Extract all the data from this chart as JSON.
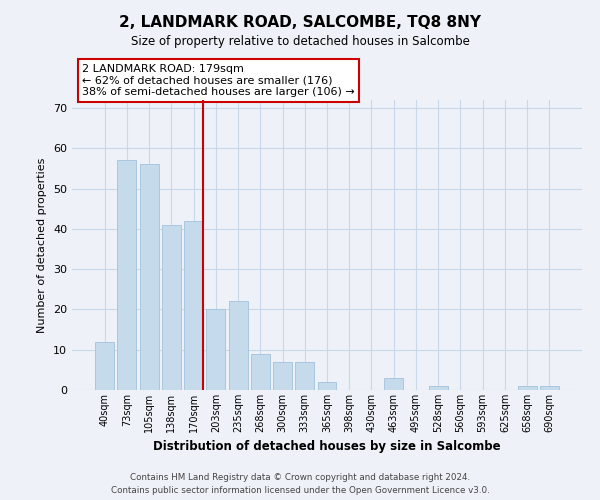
{
  "title": "2, LANDMARK ROAD, SALCOMBE, TQ8 8NY",
  "subtitle": "Size of property relative to detached houses in Salcombe",
  "xlabel": "Distribution of detached houses by size in Salcombe",
  "ylabel": "Number of detached properties",
  "bar_labels": [
    "40sqm",
    "73sqm",
    "105sqm",
    "138sqm",
    "170sqm",
    "203sqm",
    "235sqm",
    "268sqm",
    "300sqm",
    "333sqm",
    "365sqm",
    "398sqm",
    "430sqm",
    "463sqm",
    "495sqm",
    "528sqm",
    "560sqm",
    "593sqm",
    "625sqm",
    "658sqm",
    "690sqm"
  ],
  "bar_values": [
    12,
    57,
    56,
    41,
    42,
    20,
    22,
    9,
    7,
    7,
    2,
    0,
    0,
    3,
    0,
    1,
    0,
    0,
    0,
    1,
    1
  ],
  "bar_color": "#c5daea",
  "bar_edge_color": "#a8c8df",
  "highlight_line_index": 4,
  "highlight_line_color": "#cc0000",
  "annotation_text": "2 LANDMARK ROAD: 179sqm\n← 62% of detached houses are smaller (176)\n38% of semi-detached houses are larger (106) →",
  "annotation_box_edgecolor": "#cc0000",
  "annotation_box_facecolor": "#ffffff",
  "ylim": [
    0,
    72
  ],
  "yticks": [
    0,
    10,
    20,
    30,
    40,
    50,
    60,
    70
  ],
  "grid_color": "#c8d8e8",
  "background_color": "#eef2f8",
  "footer_line1": "Contains HM Land Registry data © Crown copyright and database right 2024.",
  "footer_line2": "Contains public sector information licensed under the Open Government Licence v3.0."
}
